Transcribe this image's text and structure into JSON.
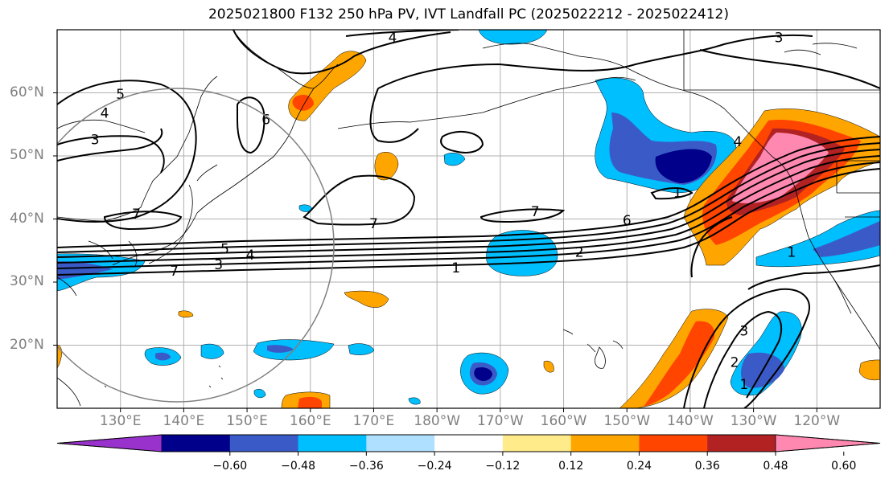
{
  "title": "2025021800 F132 250 hPa PV, IVT Landfall PC (2025022212 - 2025022412)",
  "lat_labels": [
    {
      "text": "60°N",
      "lat": 60
    },
    {
      "text": "50°N",
      "lat": 50
    },
    {
      "text": "40°N",
      "lat": 40
    },
    {
      "text": "30°N",
      "lat": 30
    },
    {
      "text": "20°N",
      "lat": 20
    }
  ],
  "lon_labels": [
    {
      "text": "130°E",
      "lon": 130
    },
    {
      "text": "140°E",
      "lon": 140
    },
    {
      "text": "150°E",
      "lon": 150
    },
    {
      "text": "160°E",
      "lon": 160
    },
    {
      "text": "170°E",
      "lon": 170
    },
    {
      "text": "180°W",
      "lon": 180
    },
    {
      "text": "170°W",
      "lon": 190
    },
    {
      "text": "160°W",
      "lon": 200
    },
    {
      "text": "150°W",
      "lon": 210
    },
    {
      "text": "140°W",
      "lon": 220
    },
    {
      "text": "130°W",
      "lon": 230
    },
    {
      "text": "120°W",
      "lon": 240
    }
  ],
  "contour_labels": [
    {
      "text": "4",
      "lon": 173,
      "lat": 68.8
    },
    {
      "text": "3",
      "lon": 234,
      "lat": 68.8
    },
    {
      "text": "5",
      "lon": 130,
      "lat": 59.8
    },
    {
      "text": "4",
      "lon": 127.5,
      "lat": 56.8
    },
    {
      "text": "3",
      "lon": 126,
      "lat": 52.6
    },
    {
      "text": "6",
      "lon": 153,
      "lat": 55.8
    },
    {
      "text": "7",
      "lon": 132.5,
      "lat": 40.8
    },
    {
      "text": "7",
      "lon": 170,
      "lat": 39.3
    },
    {
      "text": "7",
      "lon": 195.5,
      "lat": 41.2
    },
    {
      "text": "6",
      "lon": 210,
      "lat": 39.8
    },
    {
      "text": "5",
      "lon": 146.5,
      "lat": 35.3
    },
    {
      "text": "4",
      "lon": 150.5,
      "lat": 34.3
    },
    {
      "text": "3",
      "lon": 145.5,
      "lat": 32.8
    },
    {
      "text": "2",
      "lon": 202.5,
      "lat": 34.8
    },
    {
      "text": "1",
      "lon": 183,
      "lat": 32.3
    },
    {
      "text": "1",
      "lon": 236,
      "lat": 34.8
    },
    {
      "text": "1",
      "lon": 218,
      "lat": 44.2
    },
    {
      "text": "4",
      "lon": 227.5,
      "lat": 52.3
    },
    {
      "text": "3",
      "lon": 228.5,
      "lat": 22.3
    },
    {
      "text": "2",
      "lon": 227,
      "lat": 17.3
    },
    {
      "text": "1",
      "lon": 228.5,
      "lat": 13.8
    },
    {
      "text": "7",
      "lon": 138.5,
      "lat": 31.8
    }
  ],
  "colorbar": {
    "colors": [
      "#9932cc",
      "#00008b",
      "#3a5bc7",
      "#00bfff",
      "#b0e0ff",
      "#ffffff",
      "#ffeb8a",
      "#ffa500",
      "#ff4500",
      "#b22222",
      "#ff88b0"
    ],
    "tick_labels": [
      "−0.60",
      "−0.48",
      "−0.36",
      "−0.24",
      "−0.12",
      "0.12",
      "0.24",
      "0.36",
      "0.48",
      "0.60"
    ],
    "tick_values": [
      -0.6,
      -0.48,
      -0.36,
      -0.24,
      -0.12,
      0.12,
      0.24,
      0.36,
      0.48,
      0.6
    ],
    "extend": "both"
  },
  "map_extent": {
    "lon_min": 120,
    "lon_max": 250,
    "lat_min": 10,
    "lat_max": 70
  },
  "colors": {
    "frame": "#000000",
    "grid": "#b0b0b0",
    "contour": "#000000",
    "coast": "#000000",
    "circle": "#808080"
  }
}
